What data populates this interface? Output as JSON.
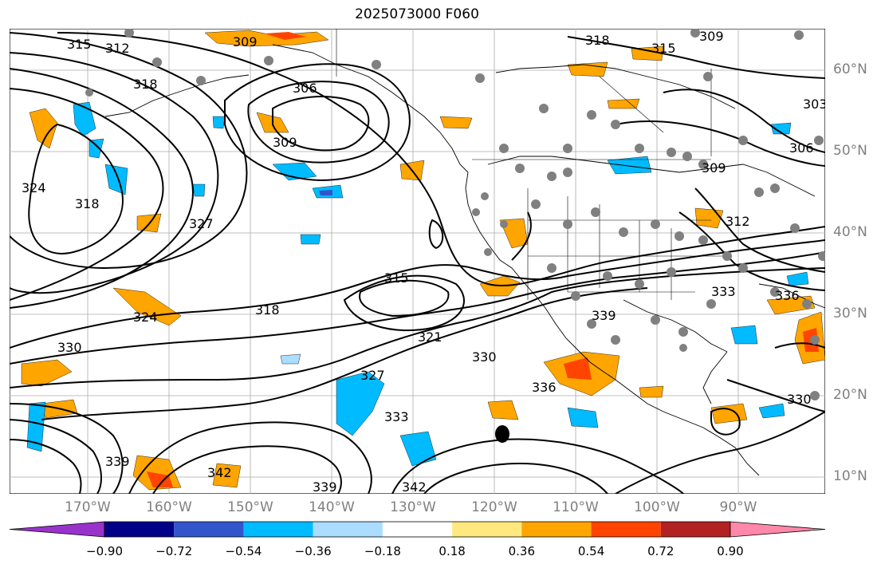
{
  "title": "2025073000 F060",
  "map": {
    "lat_labels": [
      "60°N",
      "50°N",
      "40°N",
      "30°N",
      "20°N",
      "10°N"
    ],
    "lon_labels": [
      "170°W",
      "160°W",
      "150°W",
      "140°W",
      "130°W",
      "120°W",
      "110°W",
      "100°W",
      "90°W"
    ],
    "contour_labels": [
      "309",
      "312",
      "315",
      "318",
      "306",
      "309",
      "318",
      "315",
      "309",
      "303",
      "306",
      "309",
      "312",
      "324",
      "327",
      "318",
      "315",
      "318",
      "324",
      "330",
      "321",
      "330",
      "327",
      "336",
      "333",
      "339",
      "342",
      "339",
      "342",
      "336",
      "333",
      "339",
      "330"
    ],
    "land_color": "#ffffff",
    "grid": true
  },
  "colorbar": {
    "ticks": [
      "−0.90",
      "−0.72",
      "−0.54",
      "−0.36",
      "−0.18",
      "0.18",
      "0.36",
      "0.54",
      "0.72",
      "0.90"
    ],
    "colors": [
      "#9933cc",
      "#000088",
      "#3355cc",
      "#00bbff",
      "#aaddff",
      "#ffffff",
      "#ffe97f",
      "#ffa500",
      "#ff4400",
      "#b22222",
      "#ff88aa"
    ]
  }
}
